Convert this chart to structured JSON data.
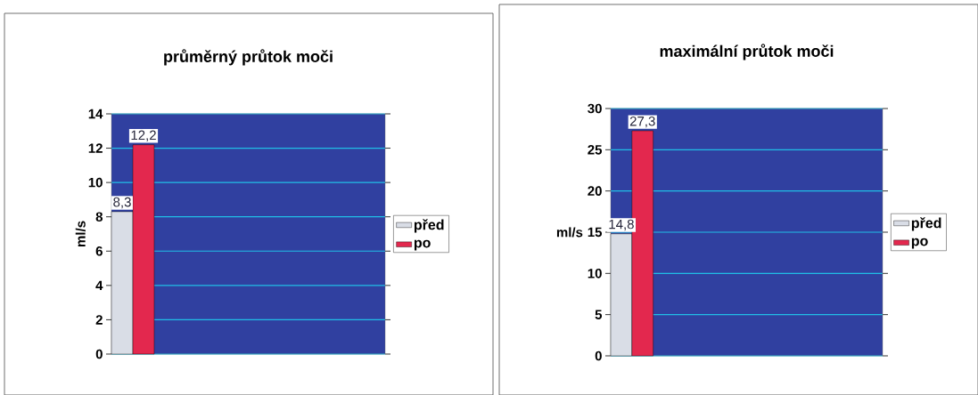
{
  "chart_data": [
    {
      "type": "bar",
      "title": "průměrný průtok moči",
      "ylabel": "ml/s",
      "categories": [
        null
      ],
      "series": [
        {
          "name": "před",
          "color": "#d9dde6",
          "values": [
            8.3
          ],
          "value_labels": [
            "8,3"
          ]
        },
        {
          "name": "po",
          "color": "#e3284e",
          "values": [
            12.2
          ],
          "value_labels": [
            "12,2"
          ]
        }
      ],
      "ylim": [
        0,
        14
      ],
      "yticks": [
        0,
        2,
        4,
        6,
        8,
        10,
        12,
        14
      ],
      "grid": "y",
      "legend": "right"
    },
    {
      "type": "bar",
      "title": "maximální průtok moči",
      "ylabel": "ml/s",
      "categories": [
        null
      ],
      "series": [
        {
          "name": "před",
          "color": "#d9dde6",
          "values": [
            14.8
          ],
          "value_labels": [
            "14,8"
          ]
        },
        {
          "name": "po",
          "color": "#e3284e",
          "values": [
            27.3
          ],
          "value_labels": [
            "27,3"
          ]
        }
      ],
      "ylim": [
        0,
        30
      ],
      "yticks": [
        0,
        5,
        10,
        15,
        20,
        25,
        30
      ],
      "grid": "y",
      "legend": "right"
    }
  ]
}
